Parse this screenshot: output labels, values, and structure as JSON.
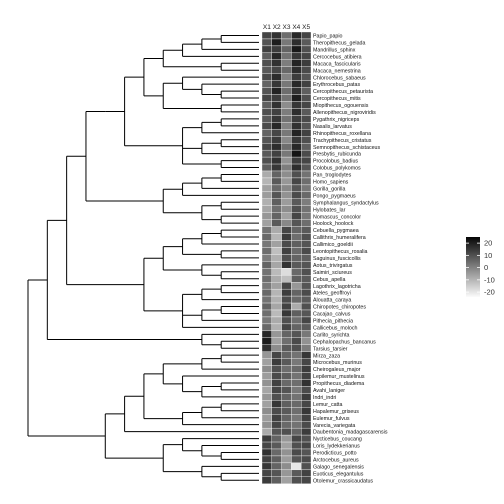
{
  "chart_data": {
    "type": "heatmap",
    "columns": [
      "X1",
      "X2",
      "X3",
      "X4",
      "X5"
    ],
    "rows": [
      "Papio_papio",
      "Theropithecus_gelada",
      "Mandrillus_sphinx",
      "Cercocebus_atibiera",
      "Macaca_fascicularis",
      "Macaca_nemestrina",
      "Chlorocebus_sabaeus",
      "Erythrocebus_patas",
      "Cercopithecus_petaurista",
      "Cercopithecus_mitis",
      "Miopithecus_ogouensis",
      "Allenopithecus_nigroviridis",
      "Pygathrix_nigriceps",
      "Nasalis_larvatus",
      "Rhinopithecus_roxellana",
      "Trachypithecus_cristatus",
      "Semnopithecus_schistaceus",
      "Presbytis_rubicunda",
      "Procolobus_badius",
      "Colobus_polykomos",
      "Pan_troglodytes",
      "Homo_sapiens",
      "Gorilla_gorilla",
      "Pongo_pygmaeus",
      "Symphalangus_syndactylus",
      "Hylobates_lar",
      "Nomascus_concolor",
      "Hoolock_hoolock",
      "Cebuella_pygmaea",
      "Callithrix_humeralifera",
      "Callimico_goeldii",
      "Leontopithecus_rosalia",
      "Saguinus_fuscicollis",
      "Aotus_trivirgatus",
      "Saimiri_sciureus",
      "Cebus_apella",
      "Lagothrix_lagotricha",
      "Ateles_geoffroyi",
      "Alouatta_caraya",
      "Chiropotes_chiropotes",
      "Cacajao_calvus",
      "Pithecia_pithecia",
      "Callicebus_moloch",
      "Carlito_syrichta",
      "Cephalopachus_bancanus",
      "Tarsius_tarsier",
      "Mirza_zaza",
      "Microcebus_murinus",
      "Cheirogaleus_major",
      "Lepilemur_mustelinus",
      "Propithecus_diadema",
      "Avahi_laniger",
      "Indri_indri",
      "Lemur_catta",
      "Hapalemur_griseus",
      "Eulemur_fulvus",
      "Varecia_variegata",
      "Daubentonia_madagascarensis",
      "Nycticebus_coucang",
      "Loris_lydekkerianus",
      "Perodicticus_potto",
      "Arctocebus_aureus",
      "Galago_senegalensis",
      "Euoticus_elegantulus",
      "Otolemur_crassicaudatus"
    ],
    "values": [
      [
        12,
        16,
        4,
        18,
        12
      ],
      [
        9,
        20,
        2,
        17,
        8
      ],
      [
        13,
        14,
        6,
        21,
        10
      ],
      [
        7,
        18,
        3,
        15,
        12
      ],
      [
        10,
        16,
        1,
        19,
        14
      ],
      [
        8,
        12,
        5,
        17,
        11
      ],
      [
        11,
        17,
        0,
        14,
        9
      ],
      [
        6,
        15,
        2,
        18,
        13
      ],
      [
        9,
        19,
        4,
        16,
        7
      ],
      [
        12,
        14,
        3,
        20,
        10
      ],
      [
        7,
        16,
        -2,
        15,
        12
      ],
      [
        10,
        13,
        1,
        17,
        8
      ],
      [
        8,
        15,
        3,
        14,
        11
      ],
      [
        11,
        18,
        0,
        16,
        9
      ],
      [
        6,
        12,
        2,
        19,
        13
      ],
      [
        9,
        14,
        -1,
        15,
        10
      ],
      [
        12,
        17,
        4,
        18,
        7
      ],
      [
        8,
        13,
        2,
        22,
        11
      ],
      [
        10,
        16,
        -3,
        14,
        12
      ],
      [
        7,
        15,
        1,
        17,
        9
      ],
      [
        -8,
        6,
        -2,
        10,
        3
      ],
      [
        -10,
        8,
        -4,
        12,
        4
      ],
      [
        -6,
        5,
        -1,
        9,
        2
      ],
      [
        -5,
        9,
        -3,
        11,
        5
      ],
      [
        -9,
        7,
        -5,
        8,
        1
      ],
      [
        -7,
        4,
        -2,
        10,
        3
      ],
      [
        -4,
        6,
        -6,
        12,
        2
      ],
      [
        -6,
        8,
        -1,
        9,
        4
      ],
      [
        3,
        -8,
        12,
        6,
        8
      ],
      [
        5,
        -10,
        14,
        4,
        10
      ],
      [
        2,
        -6,
        11,
        7,
        9
      ],
      [
        4,
        -12,
        13,
        5,
        11
      ],
      [
        1,
        -9,
        10,
        6,
        7
      ],
      [
        6,
        -7,
        16,
        8,
        9
      ],
      [
        3,
        -11,
        -18,
        5,
        10
      ],
      [
        4,
        -8,
        -12,
        7,
        8
      ],
      [
        2,
        -6,
        12,
        -4,
        9
      ],
      [
        5,
        -10,
        14,
        6,
        11
      ],
      [
        3,
        -9,
        11,
        5,
        8
      ],
      [
        6,
        -7,
        13,
        -8,
        10
      ],
      [
        4,
        -11,
        15,
        7,
        9
      ],
      [
        2,
        -8,
        10,
        4,
        12
      ],
      [
        5,
        -9,
        12,
        6,
        8
      ],
      [
        18,
        -4,
        6,
        9,
        2
      ],
      [
        20,
        -6,
        4,
        11,
        -3
      ],
      [
        16,
        -2,
        8,
        10,
        1
      ],
      [
        -4,
        12,
        6,
        3,
        15
      ],
      [
        -6,
        14,
        8,
        2,
        12
      ],
      [
        -2,
        10,
        4,
        5,
        14
      ],
      [
        -5,
        11,
        7,
        3,
        13
      ],
      [
        -3,
        13,
        5,
        4,
        16
      ],
      [
        -7,
        12,
        9,
        2,
        11
      ],
      [
        -4,
        10,
        6,
        3,
        14
      ],
      [
        -6,
        15,
        7,
        5,
        12
      ],
      [
        -2,
        11,
        8,
        4,
        15
      ],
      [
        -5,
        13,
        6,
        2,
        13
      ],
      [
        -3,
        12,
        5,
        3,
        11
      ],
      [
        -8,
        9,
        10,
        6,
        14
      ],
      [
        14,
        6,
        -4,
        12,
        10
      ],
      [
        12,
        8,
        -6,
        10,
        12
      ],
      [
        16,
        5,
        -3,
        11,
        9
      ],
      [
        13,
        7,
        -5,
        9,
        11
      ],
      [
        15,
        6,
        -2,
        -20,
        10
      ],
      [
        12,
        9,
        -4,
        8,
        13
      ],
      [
        14,
        7,
        -6,
        10,
        12
      ]
    ],
    "legend": {
      "ticks": [
        20,
        10,
        0,
        -10,
        -20
      ],
      "range": [
        -24,
        25
      ],
      "position": "right"
    },
    "colors": {
      "high": "#050505",
      "low": "#fbfbfb",
      "tree_line": "#000000",
      "cell_border": "#ffffff"
    }
  }
}
